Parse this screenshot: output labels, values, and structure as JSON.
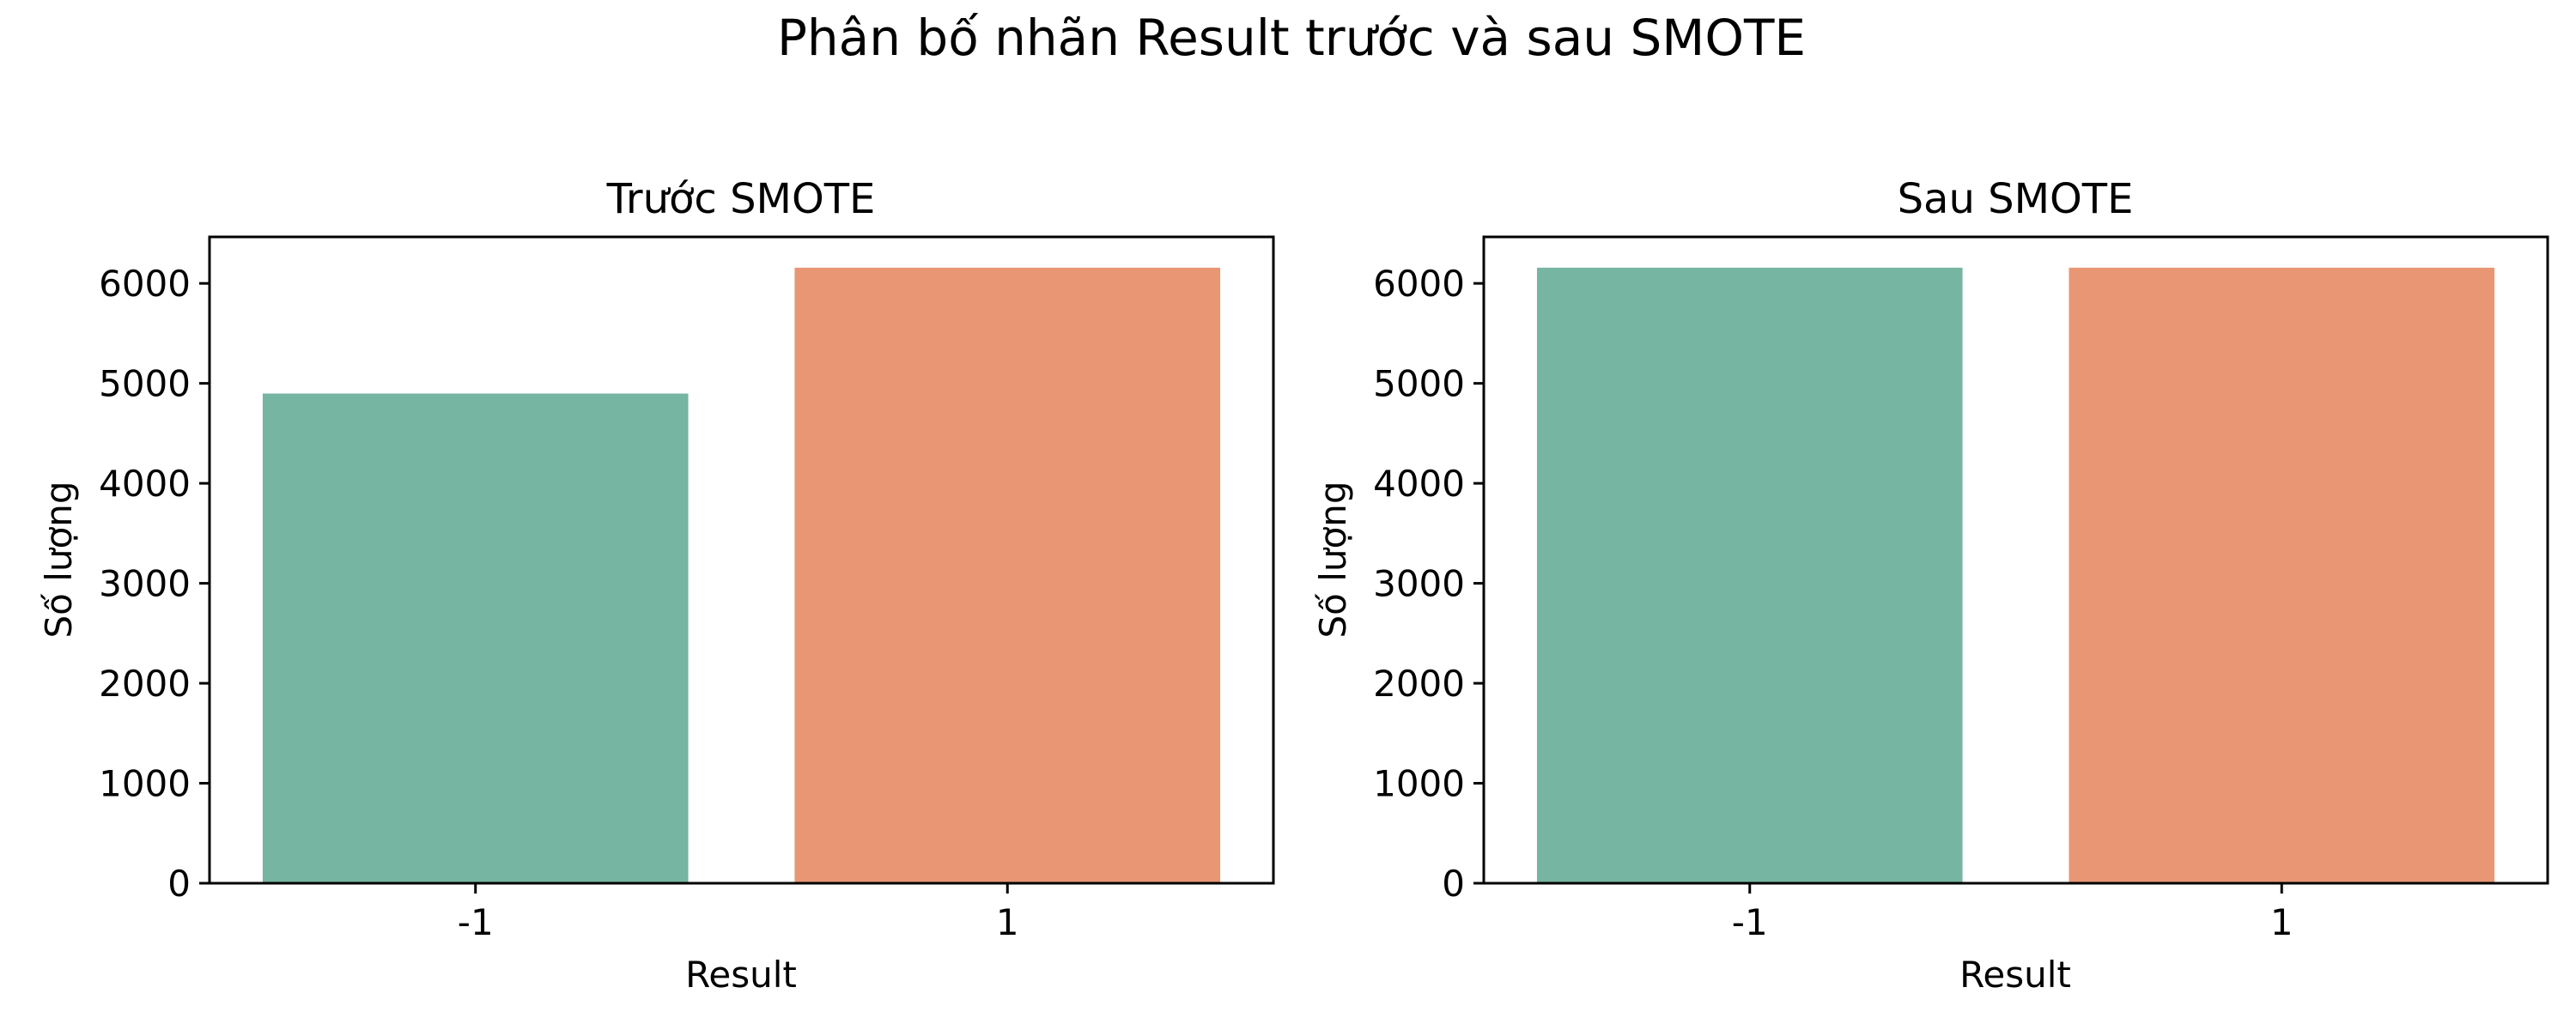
{
  "figure": {
    "title": "Phân bố nhãn Result trước và sau SMOTE"
  },
  "colors": {
    "class_neg1": "#75b5a1",
    "class_pos1": "#e89673"
  },
  "chart_data": [
    {
      "type": "bar",
      "title": "Trước SMOTE",
      "xlabel": "Result",
      "ylabel": "Số lượng",
      "categories": [
        "-1",
        "1"
      ],
      "values": [
        4898,
        6157
      ],
      "ylim": [
        0,
        6465
      ],
      "yticks": [
        0,
        1000,
        2000,
        3000,
        4000,
        5000,
        6000
      ],
      "grid": false
    },
    {
      "type": "bar",
      "title": "Sau SMOTE",
      "xlabel": "Result",
      "ylabel": "Số lượng",
      "categories": [
        "-1",
        "1"
      ],
      "values": [
        6157,
        6157
      ],
      "ylim": [
        0,
        6465
      ],
      "yticks": [
        0,
        1000,
        2000,
        3000,
        4000,
        5000,
        6000
      ],
      "grid": false
    }
  ]
}
